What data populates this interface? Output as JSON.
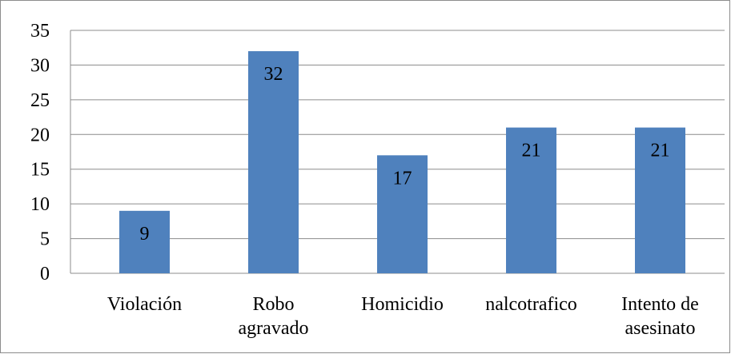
{
  "chart_data": {
    "type": "bar",
    "categories": [
      "Violación",
      "Robo\nagravado",
      "Homicidio",
      "nalcotrafico",
      "Intento de\nasesinato"
    ],
    "values": [
      9,
      32,
      17,
      21,
      21
    ],
    "color": "#4f81bd",
    "ylim": [
      0,
      35
    ],
    "yticks": [
      0,
      5,
      10,
      15,
      20,
      25,
      30,
      35
    ],
    "grid": true,
    "data_labels": true
  }
}
